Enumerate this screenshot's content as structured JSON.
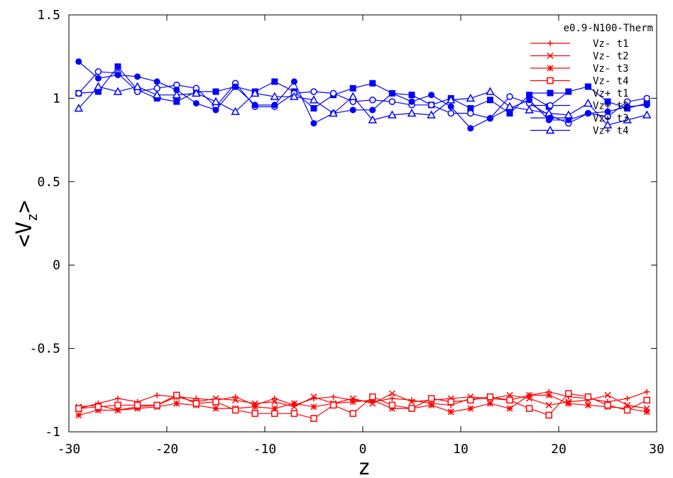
{
  "chart_data": {
    "type": "line",
    "title": "",
    "xlabel": "z",
    "ylabel_main": "<V",
    "ylabel_sub": "z",
    "ylabel_end": ">",
    "xlim": [
      -30,
      30
    ],
    "ylim": [
      -1,
      1.5
    ],
    "xticks": [
      -30,
      -20,
      -10,
      0,
      10,
      20,
      30
    ],
    "xtick_labels": [
      "-30",
      "-20",
      "-10",
      "0",
      "10",
      "20",
      "30"
    ],
    "yticks": [
      -1,
      -0.5,
      0,
      0.5,
      1,
      1.5
    ],
    "ytick_labels": [
      "-1",
      "-0.5",
      "0",
      "0.5",
      "1",
      "1.5"
    ],
    "legend_title": "e0.9-N100-Therm",
    "legend_position": "top-right",
    "grid": false,
    "x": [
      -29,
      -27,
      -25,
      -23,
      -21,
      -19,
      -17,
      -15,
      -13,
      -11,
      -9,
      -7,
      -5,
      -3,
      -1,
      1,
      3,
      5,
      7,
      9,
      11,
      13,
      15,
      17,
      19,
      21,
      23,
      25,
      27,
      29
    ],
    "series": [
      {
        "name": "Vz- t1",
        "color": "#ff0000",
        "marker": "plus",
        "values": [
          -0.86,
          -0.83,
          -0.8,
          -0.82,
          -0.78,
          -0.79,
          -0.8,
          -0.81,
          -0.79,
          -0.84,
          -0.8,
          -0.84,
          -0.8,
          -0.79,
          -0.81,
          -0.82,
          -0.8,
          -0.81,
          -0.83,
          -0.84,
          -0.8,
          -0.8,
          -0.81,
          -0.78,
          -0.76,
          -0.79,
          -0.8,
          -0.82,
          -0.8,
          -0.76
        ]
      },
      {
        "name": "Vz- t2",
        "color": "#ff0000",
        "marker": "x",
        "values": [
          -0.85,
          -0.84,
          -0.87,
          -0.85,
          -0.84,
          -0.79,
          -0.82,
          -0.8,
          -0.81,
          -0.83,
          -0.82,
          -0.85,
          -0.79,
          -0.83,
          -0.8,
          -0.83,
          -0.77,
          -0.82,
          -0.81,
          -0.8,
          -0.79,
          -0.8,
          -0.78,
          -0.8,
          -0.84,
          -0.82,
          -0.81,
          -0.78,
          -0.84,
          -0.86
        ]
      },
      {
        "name": "Vz- t3",
        "color": "#ff0000",
        "marker": "star",
        "values": [
          -0.9,
          -0.87,
          -0.87,
          -0.86,
          -0.85,
          -0.83,
          -0.84,
          -0.86,
          -0.86,
          -0.85,
          -0.86,
          -0.83,
          -0.85,
          -0.83,
          -0.82,
          -0.81,
          -0.86,
          -0.86,
          -0.84,
          -0.88,
          -0.86,
          -0.83,
          -0.86,
          -0.78,
          -0.78,
          -0.83,
          -0.84,
          -0.85,
          -0.86,
          -0.88
        ]
      },
      {
        "name": "Vz- t4",
        "color": "#ff0000",
        "marker": "square-open",
        "values": [
          -0.86,
          -0.85,
          -0.84,
          -0.84,
          -0.84,
          -0.78,
          -0.83,
          -0.82,
          -0.87,
          -0.89,
          -0.89,
          -0.89,
          -0.92,
          -0.84,
          -0.89,
          -0.79,
          -0.84,
          -0.86,
          -0.8,
          -0.82,
          -0.81,
          -0.79,
          -0.81,
          -0.86,
          -0.9,
          -0.77,
          -0.79,
          -0.84,
          -0.87,
          -0.81
        ]
      },
      {
        "name": "Vz+ t1",
        "color": "#0000ff",
        "marker": "square-filled",
        "values": [
          1.03,
          1.04,
          1.19,
          1.05,
          1.0,
          0.98,
          1.04,
          1.04,
          1.07,
          1.04,
          1.1,
          1.04,
          0.94,
          1.02,
          1.06,
          1.09,
          1.03,
          1.02,
          0.96,
          1.0,
          0.94,
          0.99,
          0.91,
          1.02,
          0.95,
          1.04,
          1.07,
          0.98,
          0.94,
          0.97
        ]
      },
      {
        "name": "Vz+ t2",
        "color": "#0000ff",
        "marker": "circle-open",
        "values": [
          1.03,
          1.16,
          1.15,
          1.04,
          1.06,
          1.08,
          1.06,
          0.95,
          1.09,
          0.95,
          0.95,
          1.03,
          1.04,
          1.03,
          0.98,
          0.99,
          0.98,
          0.96,
          0.96,
          0.91,
          0.91,
          0.88,
          1.01,
          0.97,
          0.9,
          0.85,
          0.91,
          0.89,
          0.98,
          1.0
        ]
      },
      {
        "name": "Vz+ t3",
        "color": "#0000ff",
        "marker": "circle-filled",
        "values": [
          1.22,
          1.12,
          1.14,
          1.13,
          1.1,
          1.05,
          0.97,
          0.93,
          1.07,
          0.96,
          0.96,
          1.1,
          0.85,
          0.91,
          0.93,
          0.93,
          1.03,
          0.98,
          1.02,
          0.95,
          0.82,
          0.88,
          0.94,
          0.99,
          0.87,
          0.87,
          0.91,
          0.92,
          0.95,
          0.96
        ]
      },
      {
        "name": "Vz+ t4",
        "color": "#0000ff",
        "marker": "triangle-open",
        "values": [
          0.94,
          1.07,
          1.04,
          1.07,
          1.02,
          1.02,
          1.03,
          0.98,
          0.92,
          1.03,
          1.01,
          1.01,
          0.99,
          0.91,
          1.01,
          0.87,
          0.9,
          0.91,
          0.9,
          0.99,
          1.0,
          1.04,
          0.95,
          0.93,
          0.91,
          0.9,
          0.97,
          0.84,
          0.87,
          0.9
        ]
      }
    ]
  }
}
